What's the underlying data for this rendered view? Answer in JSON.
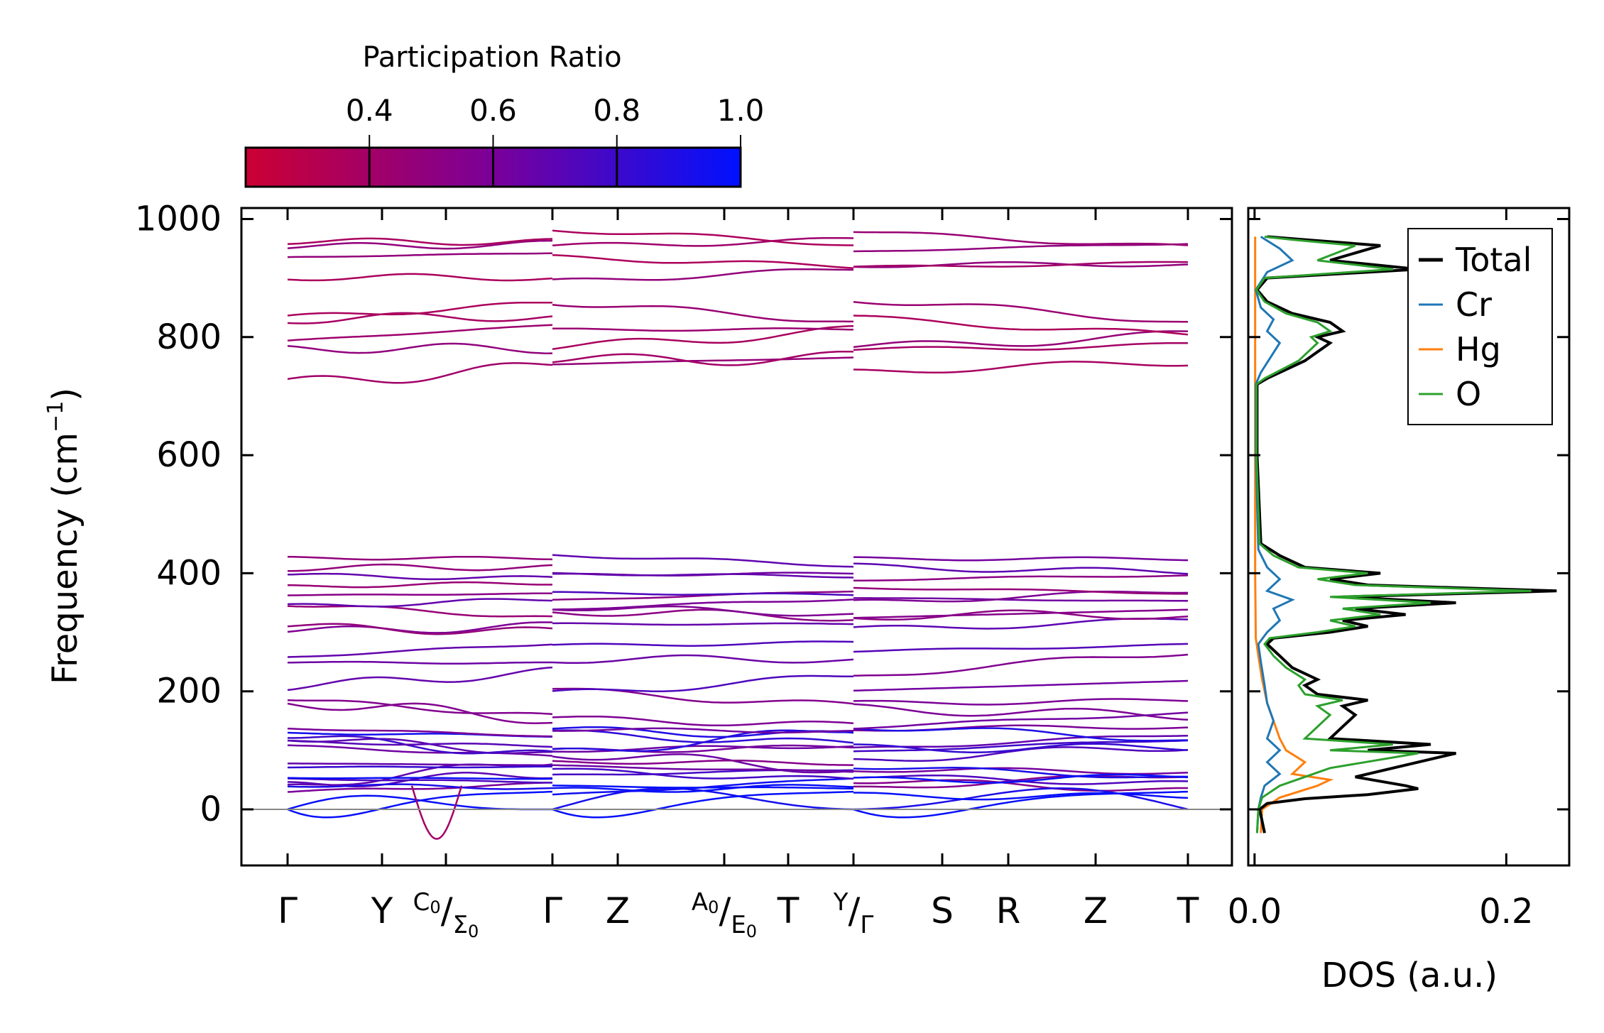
{
  "chart_data": [
    {
      "type": "line",
      "title": "",
      "xlabel": "",
      "ylabel": "Frequency (cm⁻¹)",
      "ylabel_parts": {
        "main": "Frequency (cm",
        "sup": "−1",
        "close": ")"
      },
      "ylim": [
        -100,
        1030
      ],
      "yticks": [
        0,
        200,
        400,
        600,
        800,
        1000
      ],
      "ytick_labels": [
        "0",
        "200",
        "400",
        "600",
        "800",
        "1000"
      ],
      "kpath_segments": [
        [
          "Γ",
          "Y",
          "C0/Σ0",
          "Γ"
        ],
        [
          "Γ",
          "Z",
          "A0/E0",
          "T",
          "Y/Γ"
        ],
        [
          "Y/Γ",
          "S",
          "R",
          "Z",
          "T"
        ]
      ],
      "kpoint_labels": {
        "gamma1": "Γ",
        "y1": "Y",
        "c0_main": "C",
        "c0_sub": "0",
        "sigma0_main": "Σ",
        "sigma0_sub": "0",
        "gamma2": "Γ",
        "z1": "Z",
        "a0_main": "A",
        "a0_sub": "0",
        "e0_main": "E",
        "e0_sub": "0",
        "t1": "T",
        "y2": "Y",
        "gamma3": "Γ",
        "s": "S",
        "r": "R",
        "z2": "Z",
        "t2": "T",
        "slash": "/"
      },
      "colorbar": {
        "label": "Participation Ratio",
        "range": [
          0.2,
          1.0
        ],
        "ticks": [
          0.4,
          0.6,
          0.8,
          1.0
        ],
        "tick_labels": [
          "0.4",
          "0.6",
          "0.8",
          "1.0"
        ],
        "color_low": "#cc0033",
        "color_mid": "#7a0099",
        "color_high": "#0011ff"
      },
      "zero_line_color": "#888888",
      "series_description": "phonon bands colored by participation ratio"
    },
    {
      "type": "line",
      "xlabel": "DOS (a.u.)",
      "xlim": [
        -0.005,
        0.25
      ],
      "xticks": [
        0.0,
        0.2
      ],
      "xtick_labels": [
        "0.0",
        "0.2"
      ],
      "legend": {
        "placement": "top-right",
        "entries": [
          {
            "name": "Total",
            "color": "#000000"
          },
          {
            "name": "Cr",
            "color": "#1f77b4"
          },
          {
            "name": "Hg",
            "color": "#ff7f0e"
          },
          {
            "name": "O",
            "color": "#2ca02c"
          }
        ]
      },
      "series": [
        {
          "name": "Total",
          "points": [
            [
              0.008,
              -40
            ],
            [
              0.006,
              -20
            ],
            [
              0.004,
              0
            ],
            [
              0.01,
              10
            ],
            [
              0.04,
              18
            ],
            [
              0.09,
              25
            ],
            [
              0.13,
              35
            ],
            [
              0.12,
              40
            ],
            [
              0.08,
              55
            ],
            [
              0.11,
              70
            ],
            [
              0.16,
              95
            ],
            [
              0.09,
              100
            ],
            [
              0.14,
              110
            ],
            [
              0.06,
              120
            ],
            [
              0.07,
              140
            ],
            [
              0.08,
              160
            ],
            [
              0.07,
              175
            ],
            [
              0.09,
              185
            ],
            [
              0.05,
              195
            ],
            [
              0.04,
              210
            ],
            [
              0.05,
              220
            ],
            [
              0.03,
              240
            ],
            [
              0.02,
              260
            ],
            [
              0.01,
              280
            ],
            [
              0.015,
              290
            ],
            [
              0.06,
              300
            ],
            [
              0.09,
              310
            ],
            [
              0.07,
              320
            ],
            [
              0.12,
              330
            ],
            [
              0.08,
              340
            ],
            [
              0.16,
              350
            ],
            [
              0.07,
              360
            ],
            [
              0.24,
              370
            ],
            [
              0.09,
              380
            ],
            [
              0.06,
              390
            ],
            [
              0.1,
              400
            ],
            [
              0.04,
              410
            ],
            [
              0.02,
              430
            ],
            [
              0.005,
              450
            ],
            [
              0.002,
              600
            ],
            [
              0.002,
              720
            ],
            [
              0.01,
              730
            ],
            [
              0.04,
              760
            ],
            [
              0.06,
              790
            ],
            [
              0.05,
              800
            ],
            [
              0.07,
              810
            ],
            [
              0.06,
              825
            ],
            [
              0.03,
              840
            ],
            [
              0.01,
              860
            ],
            [
              0.002,
              880
            ],
            [
              0.01,
              900
            ],
            [
              0.13,
              915
            ],
            [
              0.06,
              930
            ],
            [
              0.1,
              955
            ],
            [
              0.04,
              965
            ],
            [
              0.01,
              970
            ]
          ]
        },
        {
          "name": "Cr",
          "points": [
            [
              0.002,
              -40
            ],
            [
              0.003,
              0
            ],
            [
              0.005,
              20
            ],
            [
              0.008,
              40
            ],
            [
              0.02,
              60
            ],
            [
              0.01,
              80
            ],
            [
              0.02,
              100
            ],
            [
              0.01,
              120
            ],
            [
              0.015,
              150
            ],
            [
              0.01,
              180
            ],
            [
              0.008,
              210
            ],
            [
              0.005,
              250
            ],
            [
              0.003,
              280
            ],
            [
              0.01,
              300
            ],
            [
              0.02,
              320
            ],
            [
              0.015,
              340
            ],
            [
              0.03,
              355
            ],
            [
              0.01,
              370
            ],
            [
              0.02,
              390
            ],
            [
              0.01,
              410
            ],
            [
              0.003,
              440
            ],
            [
              0.001,
              600
            ],
            [
              0.001,
              720
            ],
            [
              0.005,
              740
            ],
            [
              0.02,
              790
            ],
            [
              0.01,
              810
            ],
            [
              0.015,
              830
            ],
            [
              0.005,
              850
            ],
            [
              0.001,
              880
            ],
            [
              0.01,
              910
            ],
            [
              0.03,
              930
            ],
            [
              0.02,
              950
            ],
            [
              0.005,
              970
            ]
          ]
        },
        {
          "name": "Hg",
          "points": [
            [
              0.005,
              -40
            ],
            [
              0.006,
              0
            ],
            [
              0.02,
              20
            ],
            [
              0.05,
              40
            ],
            [
              0.06,
              50
            ],
            [
              0.03,
              60
            ],
            [
              0.04,
              80
            ],
            [
              0.025,
              100
            ],
            [
              0.02,
              120
            ],
            [
              0.015,
              150
            ],
            [
              0.01,
              180
            ],
            [
              0.006,
              220
            ],
            [
              0.003,
              260
            ],
            [
              0.001,
              290
            ],
            [
              0.0005,
              400
            ],
            [
              0.0005,
              600
            ],
            [
              0.0005,
              800
            ],
            [
              0.0005,
              970
            ]
          ]
        },
        {
          "name": "O",
          "points": [
            [
              0.002,
              -40
            ],
            [
              0.003,
              0
            ],
            [
              0.006,
              20
            ],
            [
              0.02,
              40
            ],
            [
              0.04,
              55
            ],
            [
              0.06,
              70
            ],
            [
              0.13,
              95
            ],
            [
              0.06,
              100
            ],
            [
              0.11,
              110
            ],
            [
              0.04,
              120
            ],
            [
              0.05,
              140
            ],
            [
              0.06,
              160
            ],
            [
              0.05,
              175
            ],
            [
              0.07,
              185
            ],
            [
              0.04,
              195
            ],
            [
              0.035,
              210
            ],
            [
              0.04,
              220
            ],
            [
              0.025,
              240
            ],
            [
              0.015,
              260
            ],
            [
              0.008,
              280
            ],
            [
              0.012,
              290
            ],
            [
              0.05,
              300
            ],
            [
              0.08,
              310
            ],
            [
              0.06,
              320
            ],
            [
              0.1,
              330
            ],
            [
              0.07,
              340
            ],
            [
              0.14,
              350
            ],
            [
              0.06,
              360
            ],
            [
              0.22,
              370
            ],
            [
              0.08,
              380
            ],
            [
              0.05,
              390
            ],
            [
              0.09,
              400
            ],
            [
              0.035,
              410
            ],
            [
              0.015,
              430
            ],
            [
              0.004,
              450
            ],
            [
              0.0015,
              600
            ],
            [
              0.0015,
              720
            ],
            [
              0.008,
              730
            ],
            [
              0.035,
              760
            ],
            [
              0.05,
              790
            ],
            [
              0.045,
              800
            ],
            [
              0.06,
              810
            ],
            [
              0.05,
              825
            ],
            [
              0.025,
              840
            ],
            [
              0.008,
              860
            ],
            [
              0.0015,
              880
            ],
            [
              0.008,
              900
            ],
            [
              0.11,
              915
            ],
            [
              0.05,
              930
            ],
            [
              0.08,
              955
            ],
            [
              0.03,
              965
            ],
            [
              0.008,
              970
            ]
          ]
        }
      ]
    }
  ]
}
